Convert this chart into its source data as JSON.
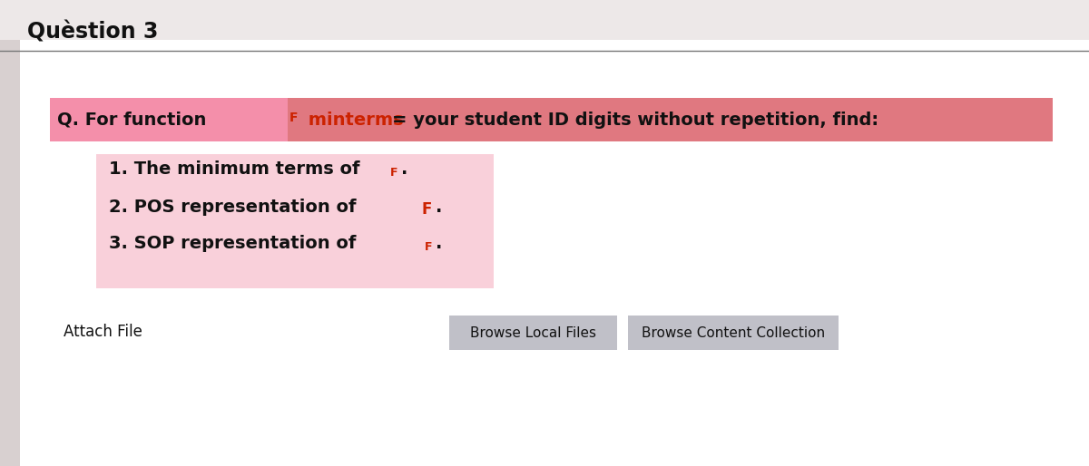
{
  "title": "Quèstion 3",
  "bg_color": "#ede8e8",
  "white_bg": "#ffffff",
  "main_question_prefix": "Q. For function ",
  "main_question_F": "F",
  "main_question_minterms": " minterms",
  "main_question_rest": " = your student ID digits without repetition, find:",
  "item1_text": "1. The minimum terms of ",
  "item2_text": "2. POS representation of ",
  "item3_text": "3. SOP representation of ",
  "item_F": "F",
  "item_dot": ".",
  "attach_file": "Attach File",
  "browse_local": "Browse Local Files",
  "browse_content": "Browse Content Collection",
  "banner_pink_left": "#f48fb1",
  "banner_pink_right": "#e8909a",
  "banner_highlight": "#f48fb1",
  "item_bg_color": "#f8c8d4",
  "red_text": "#cc2200",
  "gray_button": "#c0c0c8",
  "header_line_color": "#777777",
  "text_color": "#111111",
  "title_fontsize": 17,
  "banner_fontsize": 14,
  "item_fontsize": 14,
  "attach_fontsize": 12,
  "btn_fontsize": 11
}
